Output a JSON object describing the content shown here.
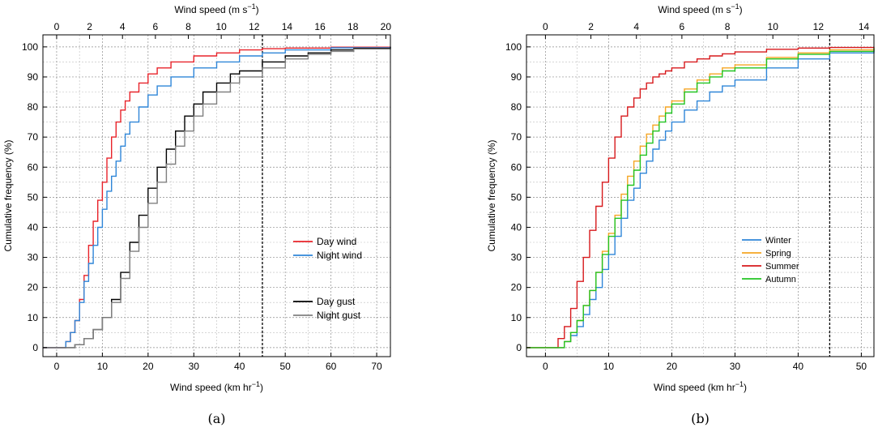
{
  "chart_data": [
    {
      "type": "line",
      "panel_caption": "(a)",
      "xlabel": "Wind speed (km hr",
      "xlabel_sup": "−1",
      "xlabel_tail": ")",
      "top_label": "Wind speed (m s",
      "top_label_sup": "−1",
      "top_label_tail": ")",
      "ylabel": "Cumulative frequency (%)",
      "xlim": [
        -3,
        73
      ],
      "ylim": [
        -3,
        104
      ],
      "x_ticks": [
        0,
        10,
        20,
        30,
        40,
        50,
        60,
        70
      ],
      "y_ticks": [
        0,
        10,
        20,
        30,
        40,
        50,
        60,
        70,
        80,
        90,
        100
      ],
      "top_ticks": [
        0,
        2,
        4,
        6,
        8,
        10,
        12,
        14,
        16,
        18,
        20
      ],
      "threshold_x": 45,
      "grid": true,
      "series": [
        {
          "name": "Day wind",
          "color": "#e8232a",
          "x": [
            -3,
            1,
            2,
            3,
            4,
            5,
            6,
            7,
            8,
            9,
            10,
            11,
            12,
            13,
            14,
            15,
            16,
            18,
            20,
            22,
            25,
            30,
            35,
            40,
            45,
            50,
            60,
            73
          ],
          "y": [
            0,
            0,
            2,
            5,
            9,
            16,
            24,
            34,
            42,
            49,
            55,
            63,
            70,
            75,
            79,
            82,
            85,
            88,
            91,
            93,
            95,
            97,
            98,
            99,
            99.4,
            99.6,
            99.9,
            100
          ]
        },
        {
          "name": "Night wind",
          "color": "#2f86d8",
          "x": [
            -3,
            1,
            2,
            3,
            4,
            5,
            6,
            7,
            8,
            9,
            10,
            11,
            12,
            13,
            14,
            15,
            16,
            18,
            20,
            22,
            25,
            30,
            35,
            40,
            45,
            50,
            60,
            73
          ],
          "y": [
            0,
            0,
            2,
            5,
            9,
            15,
            22,
            28,
            34,
            40,
            46,
            52,
            57,
            62,
            67,
            71,
            75,
            80,
            84,
            87,
            90,
            93,
            95,
            97,
            98,
            99,
            99.7,
            100
          ]
        },
        {
          "name": "Day gust",
          "color": "#000000",
          "x": [
            -3,
            2,
            4,
            6,
            8,
            10,
            12,
            14,
            16,
            18,
            20,
            22,
            24,
            26,
            28,
            30,
            32,
            35,
            38,
            40,
            45,
            50,
            55,
            60,
            65,
            73
          ],
          "y": [
            0,
            0,
            1,
            3,
            6,
            10,
            16,
            25,
            35,
            44,
            53,
            60,
            66,
            72,
            77,
            81,
            85,
            88,
            91,
            92,
            95,
            97,
            98,
            99,
            99.5,
            100
          ]
        },
        {
          "name": "Night gust",
          "color": "#808080",
          "x": [
            -3,
            2,
            4,
            6,
            8,
            10,
            12,
            14,
            16,
            18,
            20,
            22,
            24,
            26,
            28,
            30,
            32,
            35,
            38,
            40,
            45,
            50,
            55,
            60,
            65,
            73
          ],
          "y": [
            0,
            0,
            1,
            3,
            6,
            10,
            15,
            23,
            32,
            40,
            48,
            55,
            61,
            67,
            72,
            77,
            81,
            85,
            88,
            90,
            93,
            96,
            97.5,
            98.5,
            99.3,
            100
          ]
        }
      ],
      "legend_groups": [
        {
          "position": "right-middle",
          "items": [
            "Day wind",
            "Night wind"
          ]
        },
        {
          "position": "right-lower",
          "items": [
            "Day gust",
            "Night gust"
          ]
        }
      ]
    },
    {
      "type": "line",
      "panel_caption": "(b)",
      "xlabel": "Wind speed (km hr",
      "xlabel_sup": "−1",
      "xlabel_tail": ")",
      "top_label": "Wind speed (m s",
      "top_label_sup": "−1",
      "top_label_tail": ")",
      "ylabel": "Cumulative frequency (%)",
      "xlim": [
        -3,
        52
      ],
      "ylim": [
        -3,
        104
      ],
      "x_ticks": [
        0,
        10,
        20,
        30,
        40,
        50
      ],
      "y_ticks": [
        0,
        10,
        20,
        30,
        40,
        50,
        60,
        70,
        80,
        90,
        100
      ],
      "top_ticks": [
        0,
        2,
        4,
        6,
        8,
        10,
        12,
        14
      ],
      "threshold_x": 45,
      "grid": true,
      "series": [
        {
          "name": "Winter",
          "color": "#2f86d8",
          "x": [
            -3,
            2,
            3,
            4,
            5,
            6,
            7,
            8,
            9,
            10,
            11,
            12,
            13,
            14,
            15,
            16,
            17,
            18,
            19,
            20,
            22,
            24,
            26,
            28,
            30,
            35,
            40,
            45,
            52
          ],
          "y": [
            0,
            0,
            2,
            4,
            7,
            11,
            16,
            20,
            26,
            31,
            37,
            43,
            49,
            53,
            58,
            62,
            66,
            69,
            72,
            75,
            79,
            82,
            85,
            87,
            89,
            93,
            96,
            98,
            99.5
          ]
        },
        {
          "name": "Spring",
          "color": "#f5a623",
          "x": [
            -3,
            2,
            3,
            4,
            5,
            6,
            7,
            8,
            9,
            10,
            11,
            12,
            13,
            14,
            15,
            16,
            17,
            18,
            19,
            20,
            22,
            24,
            26,
            28,
            30,
            35,
            40,
            45,
            52
          ],
          "y": [
            0,
            0,
            2,
            5,
            9,
            14,
            19,
            25,
            32,
            38,
            44,
            51,
            57,
            62,
            67,
            71,
            74,
            77,
            80,
            82,
            86,
            89,
            91,
            93,
            94,
            96.5,
            98,
            99,
            99.7
          ]
        },
        {
          "name": "Summer",
          "color": "#d7191c",
          "x": [
            -3,
            1,
            2,
            3,
            4,
            5,
            6,
            7,
            8,
            9,
            10,
            11,
            12,
            13,
            14,
            15,
            16,
            17,
            18,
            19,
            20,
            22,
            24,
            26,
            28,
            30,
            35,
            40,
            45,
            52
          ],
          "y": [
            0,
            0,
            3,
            7,
            13,
            22,
            30,
            39,
            47,
            55,
            63,
            70,
            77,
            80,
            83,
            86,
            88,
            90,
            91,
            92,
            93,
            95,
            96,
            97,
            97.7,
            98.3,
            99.2,
            99.6,
            99.8,
            100
          ]
        },
        {
          "name": "Autumn",
          "color": "#22c422",
          "x": [
            -3,
            2,
            3,
            4,
            5,
            6,
            7,
            8,
            9,
            10,
            11,
            12,
            13,
            14,
            15,
            16,
            17,
            18,
            19,
            20,
            22,
            24,
            26,
            28,
            30,
            35,
            40,
            45,
            52
          ],
          "y": [
            0,
            0,
            2,
            5,
            9,
            14,
            19,
            25,
            31,
            37,
            43,
            49,
            54,
            59,
            64,
            68,
            72,
            75,
            78,
            81,
            85,
            88,
            90,
            92,
            93,
            96,
            97.5,
            98.5,
            99.5
          ]
        }
      ],
      "legend_groups": [
        {
          "position": "center-left",
          "items": [
            "Winter",
            "Spring",
            "Summer",
            "Autumn"
          ]
        }
      ]
    }
  ]
}
